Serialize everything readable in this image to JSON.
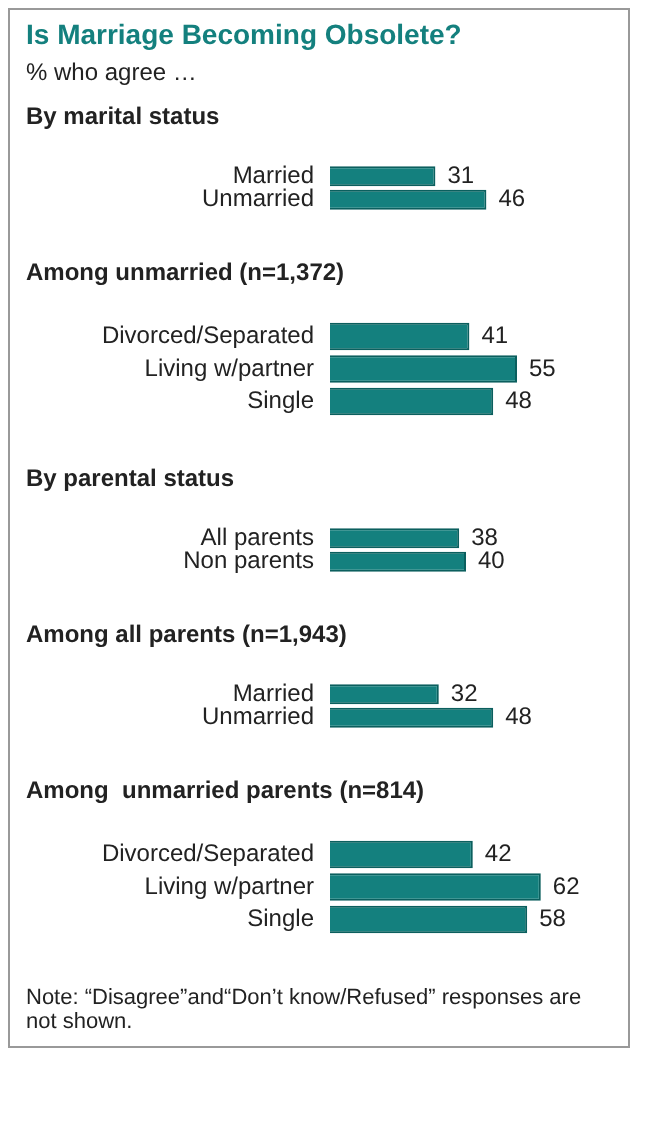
{
  "chart_data": [
    {
      "type": "other",
      "title": "Is Marriage Becoming Obsolete?",
      "subtitle": "% who agree …"
    },
    {
      "type": "bar",
      "orientation": "horizontal",
      "title": "By marital status",
      "categories": [
        "Married",
        "Unmarried"
      ],
      "values": [
        31,
        46
      ],
      "color": "#14807e",
      "data_labels": true,
      "legend": false,
      "tick_labels": "y"
    },
    {
      "type": "bar",
      "orientation": "horizontal",
      "title": "Among unmarried (n=1,372)",
      "categories": [
        "Divorced/Separated",
        "Living w/partner",
        "Single"
      ],
      "values": [
        41,
        55,
        48
      ],
      "color": "#14807e",
      "data_labels": true,
      "legend": false,
      "tick_labels": "y"
    },
    {
      "type": "bar",
      "orientation": "horizontal",
      "title": "By parental status",
      "categories": [
        "All parents",
        "Non parents"
      ],
      "values": [
        38,
        40
      ],
      "color": "#14807e",
      "data_labels": true,
      "legend": false,
      "tick_labels": "y"
    },
    {
      "type": "bar",
      "orientation": "horizontal",
      "title": "Among all parents (n=1,943)",
      "categories": [
        "Married",
        "Unmarried"
      ],
      "values": [
        32,
        48
      ],
      "color": "#14807e",
      "data_labels": true,
      "legend": false,
      "tick_labels": "y"
    },
    {
      "type": "bar",
      "orientation": "horizontal",
      "title": "Among  unmarried parents (n=814)",
      "categories": [
        "Divorced/Separated",
        "Living w/partner",
        "Single"
      ],
      "values": [
        42,
        62,
        58
      ],
      "color": "#14807e",
      "data_labels": true,
      "legend": false,
      "tick_labels": "y",
      "annotations": [
        "Note: “Disagree”and“Don’t know/Refused” responses are not shown."
      ]
    }
  ]
}
